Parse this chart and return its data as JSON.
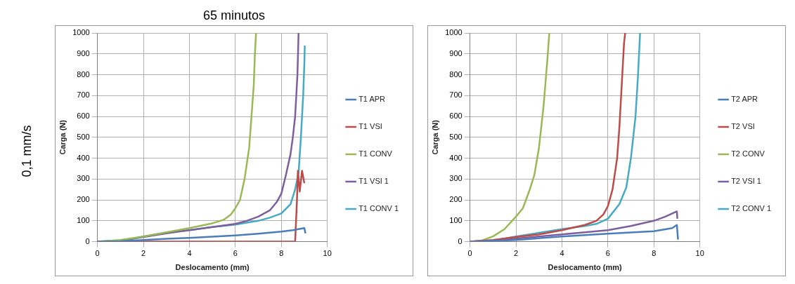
{
  "chart_data": [
    {
      "type": "line",
      "title": "65 minutos",
      "annotations": [
        "0,1 mm/s"
      ],
      "xlabel": "Deslocamento (mm)",
      "ylabel": "Carga (N)",
      "xlim": [
        0,
        10
      ],
      "xticks": [
        0,
        2,
        4,
        6,
        8,
        10
      ],
      "ylim": [
        0,
        1000
      ],
      "yticks": [
        0,
        100,
        200,
        300,
        400,
        500,
        600,
        700,
        800,
        900,
        1000
      ],
      "grid": true,
      "legend": "right",
      "marker": "none",
      "series": [
        {
          "name": "T1 APR",
          "color": "#4a7ebb",
          "x": [
            0,
            1,
            2,
            3,
            4,
            5,
            6,
            7,
            8,
            8.5,
            9,
            9.05
          ],
          "values": [
            0,
            2,
            8,
            14,
            18,
            24,
            30,
            38,
            48,
            55,
            65,
            40
          ]
        },
        {
          "name": "T1 VSI",
          "color": "#be4b48",
          "x": [
            0,
            1.5,
            8.6,
            8.68,
            8.72,
            8.8,
            8.9,
            9.0
          ],
          "values": [
            0,
            0,
            0,
            200,
            340,
            240,
            340,
            280
          ]
        },
        {
          "name": "T1 CONV",
          "color": "#98b954",
          "x": [
            0,
            1,
            2,
            3,
            4,
            5,
            5.5,
            5.8,
            6,
            6.2,
            6.4,
            6.6,
            6.7,
            6.8,
            6.85,
            6.9
          ],
          "values": [
            0,
            8,
            25,
            45,
            65,
            88,
            105,
            130,
            160,
            200,
            300,
            450,
            600,
            750,
            900,
            1000
          ]
        },
        {
          "name": "T1 VSI 1",
          "color": "#7d5fa0",
          "x": [
            0,
            1,
            2,
            3,
            4,
            5,
            6,
            6.5,
            7,
            7.5,
            7.8,
            8,
            8.2,
            8.4,
            8.5,
            8.6,
            8.7,
            8.75
          ],
          "values": [
            0,
            5,
            22,
            40,
            55,
            70,
            85,
            100,
            120,
            150,
            190,
            230,
            320,
            420,
            500,
            600,
            800,
            1000
          ]
        },
        {
          "name": "T1 CONV 1",
          "color": "#46aac5",
          "x": [
            0,
            1,
            2,
            3,
            4,
            5,
            6,
            7,
            7.5,
            8,
            8.4,
            8.6,
            8.75,
            8.85,
            8.95,
            9.0,
            9.02
          ],
          "values": [
            0,
            3,
            25,
            42,
            55,
            70,
            82,
            100,
            115,
            135,
            180,
            250,
            330,
            500,
            700,
            850,
            940
          ]
        }
      ]
    },
    {
      "type": "line",
      "xlabel": "Deslocamento (mm)",
      "ylabel": "Carga (N)",
      "xlim": [
        0,
        10
      ],
      "xticks": [
        0,
        2,
        4,
        6,
        8,
        10
      ],
      "ylim": [
        0,
        1000
      ],
      "yticks": [
        0,
        100,
        200,
        300,
        400,
        500,
        600,
        700,
        800,
        900,
        1000
      ],
      "grid": true,
      "legend": "right",
      "marker": "none",
      "series": [
        {
          "name": "T2 APR",
          "color": "#4a7ebb",
          "x": [
            0,
            2,
            4,
            6,
            8,
            8.8,
            9,
            9.05
          ],
          "values": [
            0,
            8,
            25,
            38,
            50,
            65,
            80,
            10
          ]
        },
        {
          "name": "T2 VSI",
          "color": "#be4b48",
          "x": [
            0,
            1,
            2,
            3,
            4,
            5,
            5.5,
            5.8,
            6,
            6.2,
            6.4,
            6.5,
            6.6,
            6.7,
            6.75
          ],
          "values": [
            0,
            8,
            22,
            35,
            55,
            80,
            100,
            130,
            170,
            250,
            400,
            550,
            750,
            950,
            1000
          ]
        },
        {
          "name": "T2 CONV",
          "color": "#98b954",
          "x": [
            0,
            0.5,
            1,
            1.5,
            2,
            2.3,
            2.6,
            2.8,
            3.0,
            3.2,
            3.35,
            3.45
          ],
          "values": [
            0,
            5,
            25,
            60,
            120,
            160,
            250,
            320,
            450,
            650,
            850,
            1000
          ]
        },
        {
          "name": "T2 VSI 1",
          "color": "#7d5fa0",
          "x": [
            0,
            1,
            2,
            3,
            4,
            5,
            6,
            7,
            8,
            8.5,
            9,
            9.02
          ],
          "values": [
            0,
            2,
            15,
            25,
            35,
            45,
            55,
            75,
            100,
            120,
            145,
            110
          ]
        },
        {
          "name": "T2 CONV 1",
          "color": "#46aac5",
          "x": [
            0,
            1,
            2,
            3,
            4,
            5,
            5.5,
            6,
            6.5,
            6.8,
            7.0,
            7.2,
            7.3,
            7.4
          ],
          "values": [
            0,
            5,
            25,
            42,
            60,
            75,
            85,
            110,
            180,
            260,
            400,
            600,
            780,
            1000
          ]
        }
      ]
    }
  ]
}
